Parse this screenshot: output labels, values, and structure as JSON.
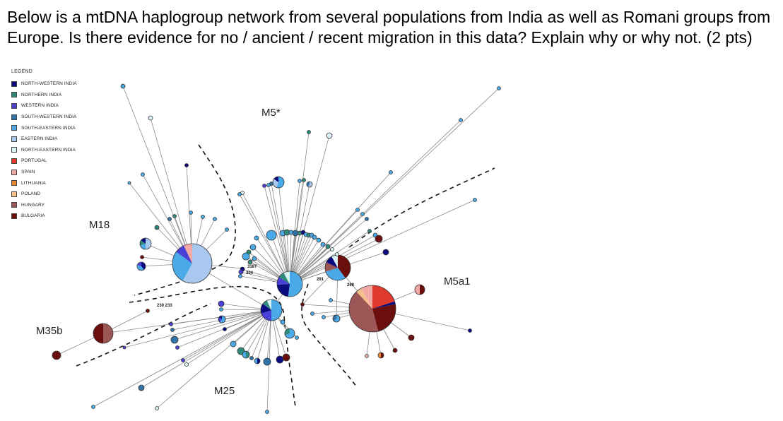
{
  "question": "Below is a mtDNA haplogroup network from several populations from India as well as Romani groups from Europe. Is there evidence for no / ancient / recent migration in this data? Explain why or why not.  (2 pts)",
  "legend": {
    "title": "LEGEND",
    "items": [
      {
        "label": "NORTH-WESTERN INDIA",
        "color": "#0b0b80"
      },
      {
        "label": "NORTHERN INDIA",
        "color": "#2e8a7a"
      },
      {
        "label": "WESTERN INDIA",
        "color": "#4a3fd6"
      },
      {
        "label": "SOUTH-WESTERN INDIA",
        "color": "#2f73a8"
      },
      {
        "label": "SOUTH-EASTERN INDIA",
        "color": "#4aaae8"
      },
      {
        "label": "EASTERN INDIA",
        "color": "#a9c8ef"
      },
      {
        "label": "NORTH-EASTERN INDIA",
        "color": "#d8f4f6"
      },
      {
        "label": "PORTUGAL",
        "color": "#e03a2c"
      },
      {
        "label": "SPAIN",
        "color": "#f2a9a5"
      },
      {
        "label": "LITHUANIA",
        "color": "#ec8a30"
      },
      {
        "label": "POLAND",
        "color": "#f6c08a"
      },
      {
        "label": "HUNGARY",
        "color": "#9d5656"
      },
      {
        "label": "BULGARIA",
        "color": "#6b0e0e"
      }
    ]
  },
  "clusters": [
    "M5*",
    "M18",
    "M5a1",
    "M35b",
    "M25"
  ],
  "node_labels": [
    "318T",
    "304",
    "291",
    "298",
    "230 233"
  ]
}
